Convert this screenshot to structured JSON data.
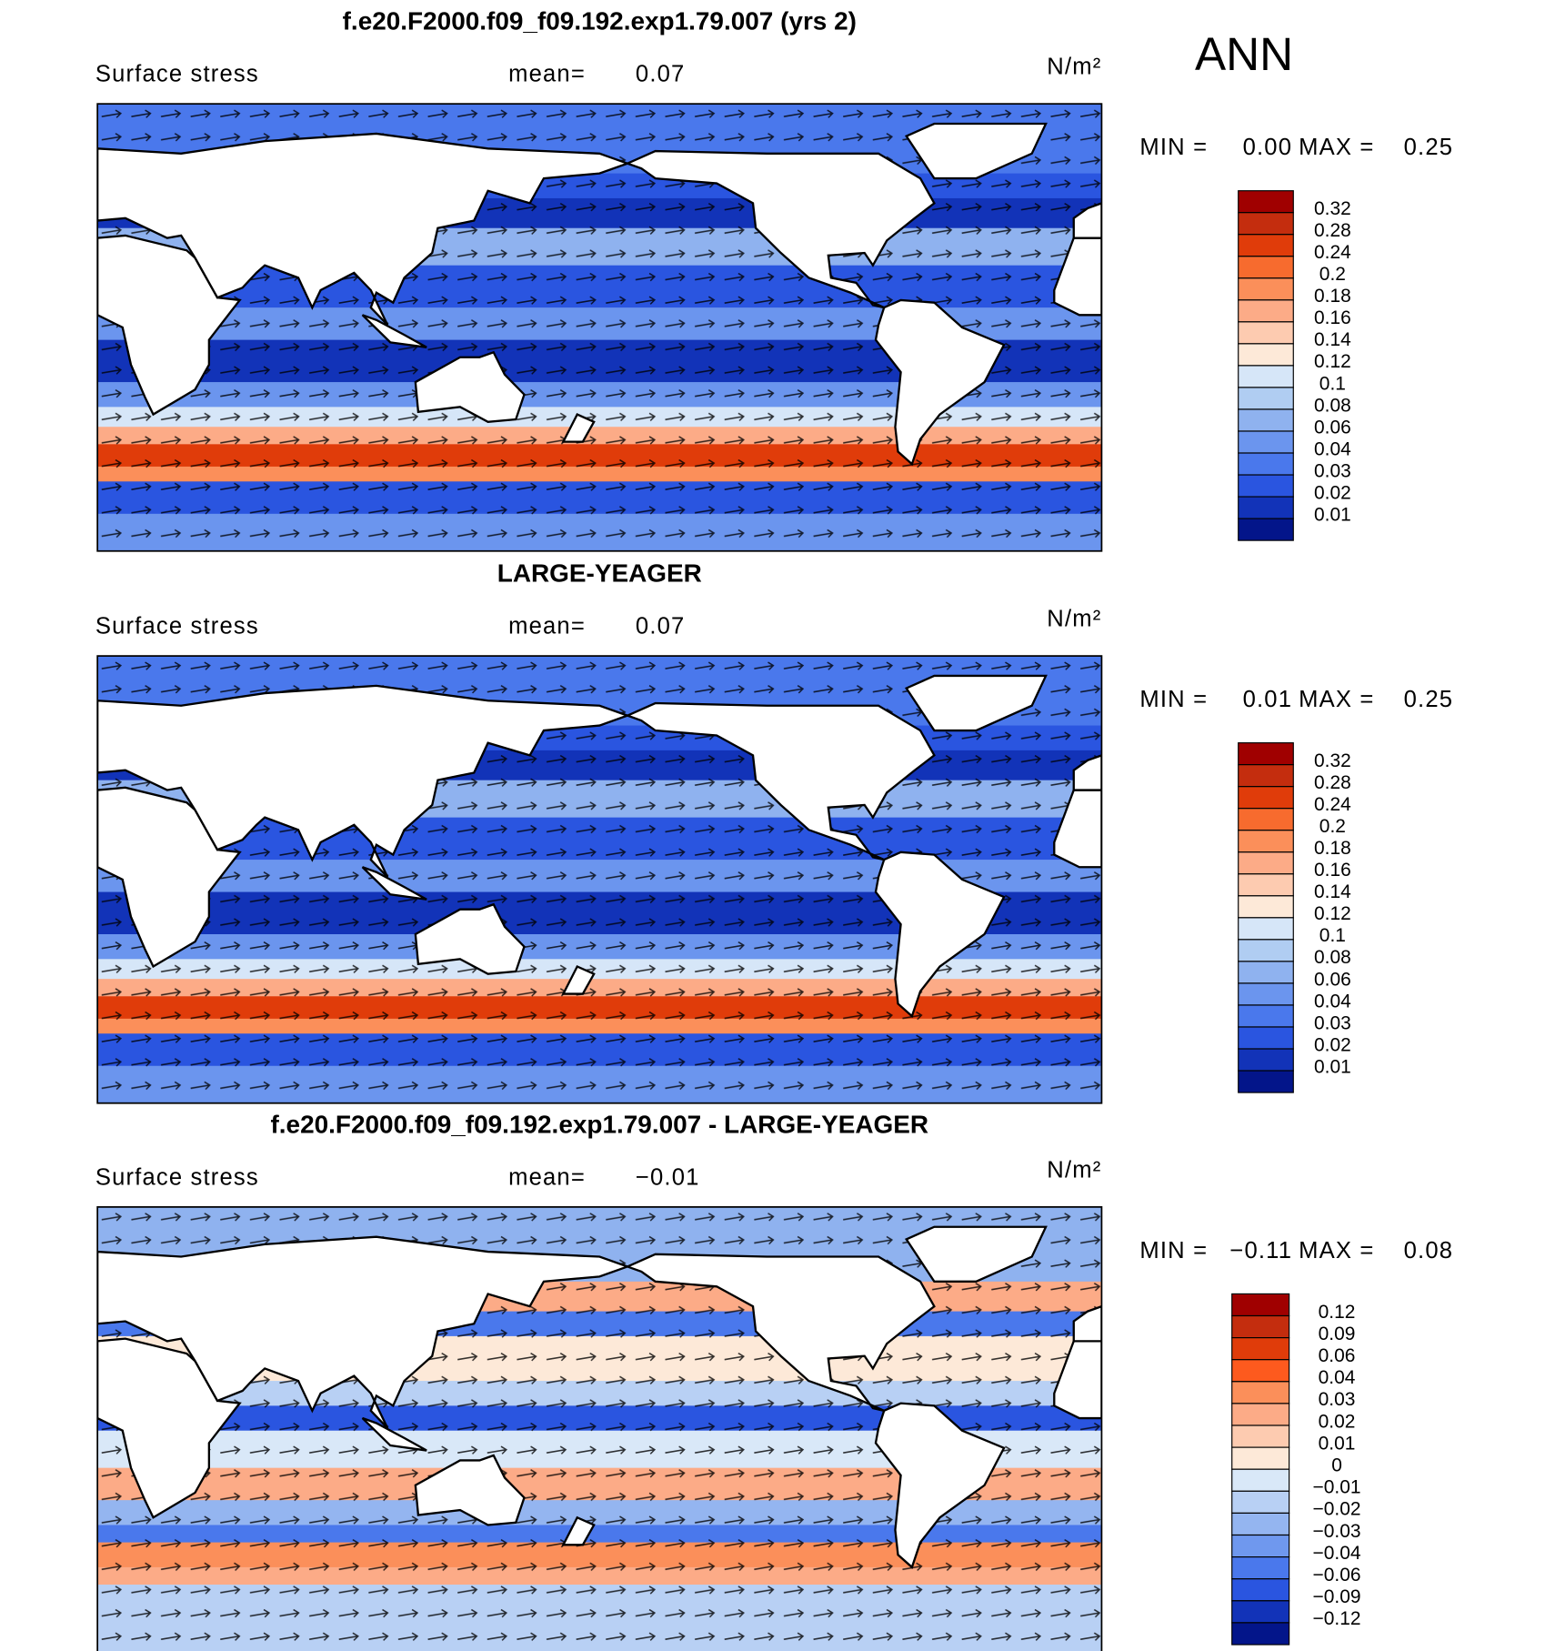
{
  "figure_label": "ANN",
  "panels": [
    {
      "title": "f.e20.F2000.f09_f09.192.exp1.79.007 (yrs 2)",
      "variable": "Surface stress",
      "mean_label": "mean=",
      "mean": "0.07",
      "units": "N/m²",
      "min_label": "MIN =",
      "min": "0.00",
      "max_label": "MAX =",
      "max": "0.25",
      "colorbar": {
        "labels": [
          "0.32",
          "0.28",
          "0.24",
          "0.2",
          "0.18",
          "0.16",
          "0.14",
          "0.12",
          "0.1",
          "0.08",
          "0.06",
          "0.04",
          "0.03",
          "0.02",
          "0.01"
        ],
        "colors": [
          "#a00000",
          "#c42d0e",
          "#e03c0a",
          "#f76b2e",
          "#fb8f5a",
          "#fcab87",
          "#fdcbb0",
          "#fde9d8",
          "#d6e6f8",
          "#b0cdf2",
          "#8fb2ef",
          "#6b95ee",
          "#4a78ec",
          "#2a55e0",
          "#1233b8",
          "#03158a"
        ]
      }
    },
    {
      "title": "LARGE-YEAGER",
      "variable": "Surface stress",
      "mean_label": "mean=",
      "mean": "0.07",
      "units": "N/m²",
      "min_label": "MIN =",
      "min": "0.01",
      "max_label": "MAX =",
      "max": "0.25",
      "colorbar": {
        "labels": [
          "0.32",
          "0.28",
          "0.24",
          "0.2",
          "0.18",
          "0.16",
          "0.14",
          "0.12",
          "0.1",
          "0.08",
          "0.06",
          "0.04",
          "0.03",
          "0.02",
          "0.01"
        ],
        "colors": [
          "#a00000",
          "#c42d0e",
          "#e03c0a",
          "#f76b2e",
          "#fb8f5a",
          "#fcab87",
          "#fdcbb0",
          "#fde9d8",
          "#d6e6f8",
          "#b0cdf2",
          "#8fb2ef",
          "#6b95ee",
          "#4a78ec",
          "#2a55e0",
          "#1233b8",
          "#03158a"
        ]
      }
    },
    {
      "title": "f.e20.F2000.f09_f09.192.exp1.79.007 - LARGE-YEAGER",
      "variable": "Surface stress",
      "mean_label": "mean=",
      "mean": "−0.01",
      "units": "N/m²",
      "min_label": "MIN =",
      "min": "−0.11",
      "max_label": "MAX =",
      "max": "0.08",
      "colorbar": {
        "labels": [
          "0.12",
          "0.09",
          "0.06",
          "0.04",
          "0.03",
          "0.02",
          "0.01",
          "0",
          "−0.01",
          "−0.02",
          "−0.03",
          "−0.04",
          "−0.06",
          "−0.09",
          "−0.12"
        ],
        "colors": [
          "#a00000",
          "#c42d0e",
          "#e03c0a",
          "#fd5a1e",
          "#fb8f5a",
          "#fcab87",
          "#fdcbb0",
          "#fde9d8",
          "#d9e8f8",
          "#b8d0f4",
          "#94b5f0",
          "#6f98ee",
          "#4a78ec",
          "#2a55e0",
          "#1233b8",
          "#03158a"
        ]
      }
    }
  ]
}
